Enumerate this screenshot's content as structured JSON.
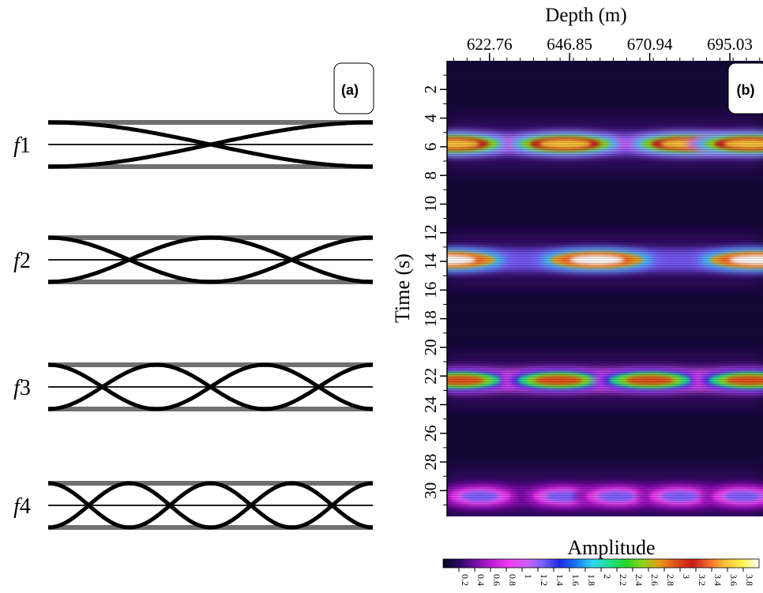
{
  "chart_data": [
    {
      "panel": "(a)",
      "type": "diagram",
      "rows": [
        {
          "label": "f1",
          "mode": 1
        },
        {
          "label": "f2",
          "mode": 2
        },
        {
          "label": "f3",
          "mode": 3
        },
        {
          "label": "f4",
          "mode": 4
        }
      ]
    },
    {
      "panel": "(b)",
      "type": "heatmap",
      "xlabel": "Depth (m)",
      "ylabel": "Time (s)",
      "x_ticks": [
        "622.76",
        "646.85",
        "670.94",
        "695.03"
      ],
      "y_ticks": [
        "2",
        "4",
        "6",
        "8",
        "10",
        "12",
        "14",
        "16",
        "18",
        "20",
        "22",
        "24",
        "26",
        "28",
        "30"
      ],
      "xlim": [
        610.0,
        705.0
      ],
      "ylim": [
        0,
        31.8
      ],
      "colorbar": {
        "title": "Amplitude",
        "ticks": [
          "0.2",
          "0.4",
          "0.6",
          "0.8",
          "1",
          "1.2",
          "1.4",
          "1.6",
          "1.8",
          "2",
          "2.2",
          "2.4",
          "2.6",
          "2.8",
          "3",
          "3.2",
          "3.4",
          "3.6",
          "3.8"
        ],
        "colors": [
          "#0a0420",
          "#2c0866",
          "#7a0fa8",
          "#c21fd8",
          "#f03cf0",
          "#d060f5",
          "#7b60ff",
          "#1e2ce0",
          "#1a78f5",
          "#2fd8f0",
          "#22e090",
          "#23d62a",
          "#8ed21a",
          "#e89a1a",
          "#e0501a",
          "#c81a1a",
          "#f26a2a",
          "#f7c33a",
          "#fff24a",
          "#ffffff"
        ]
      },
      "bands": [
        {
          "time": 5.8,
          "peak_amplitude": 3.6,
          "depths": [
            612.0,
            645.5,
            682.0,
            701.0
          ]
        },
        {
          "time": 13.9,
          "peak_amplitude": 3.9,
          "depths": [
            610.5,
            655.0,
            703.0
          ]
        },
        {
          "time": 22.3,
          "peak_amplitude": 3.0,
          "depths": [
            614.0,
            643.5,
            671.0,
            701.0
          ]
        },
        {
          "time": 30.4,
          "peak_amplitude": 1.3,
          "depths": [
            620.0,
            645.0,
            661.0,
            680.0,
            699.0
          ]
        }
      ]
    }
  ]
}
